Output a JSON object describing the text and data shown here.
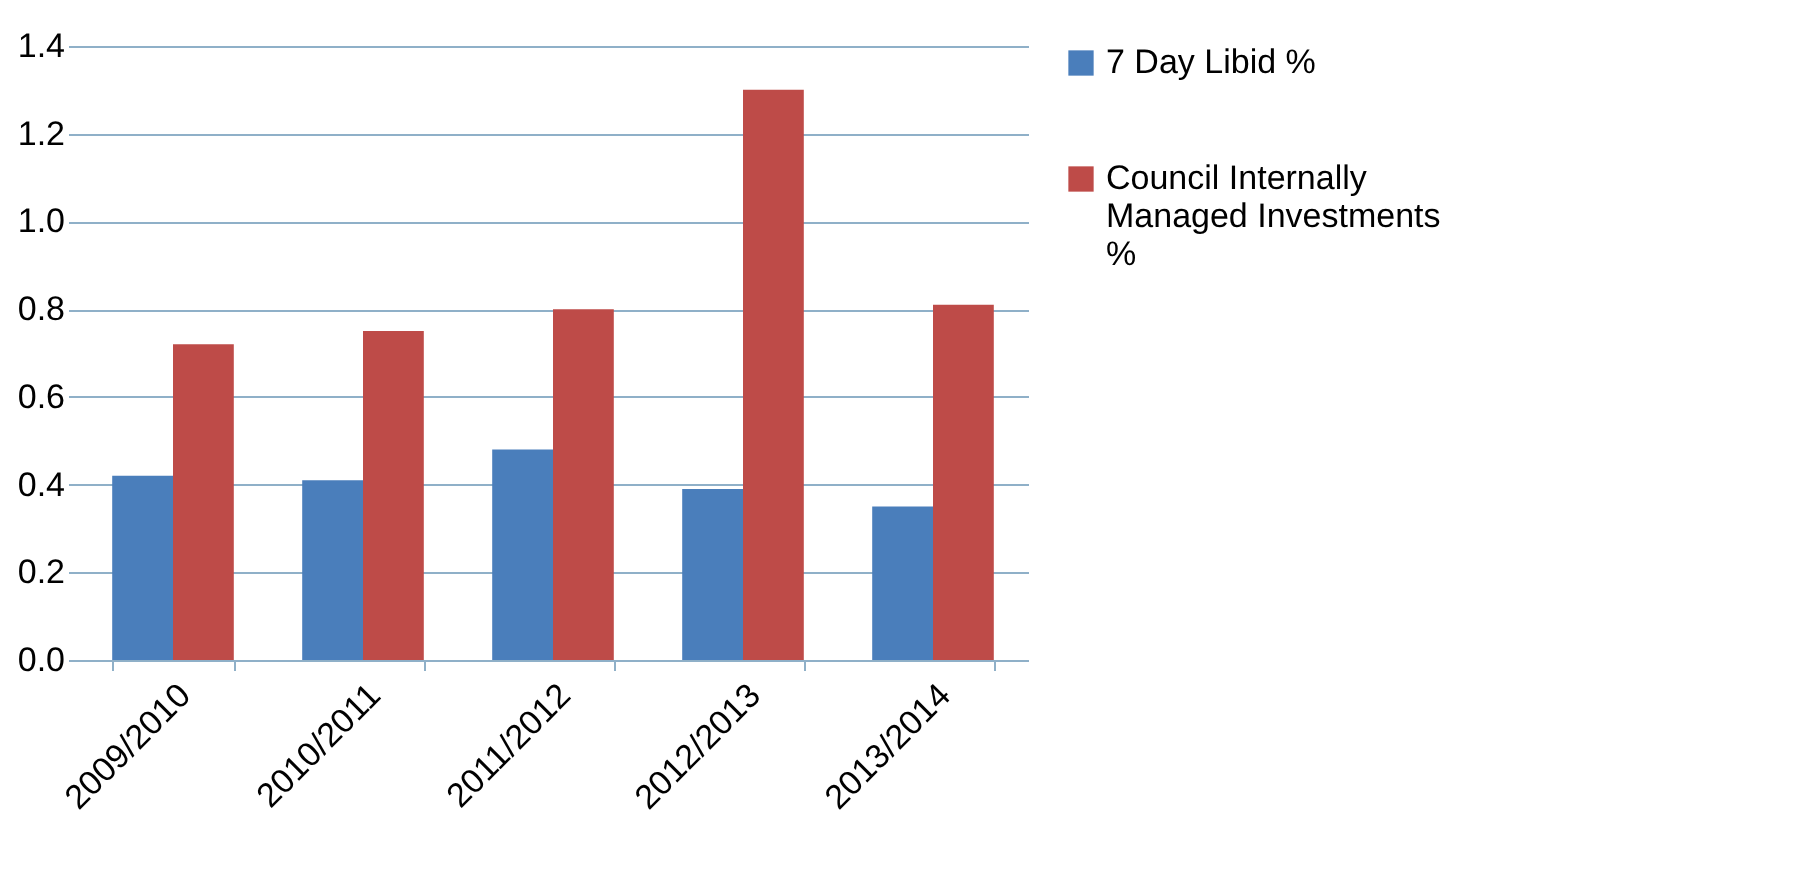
{
  "chart_data": {
    "type": "bar",
    "categories": [
      "2009/2010",
      "2010/2011",
      "2011/2012",
      "2012/2013",
      "2013/2014"
    ],
    "series": [
      {
        "name": "7 Day Libid %",
        "color": "#4a7ebb",
        "values": [
          0.42,
          0.41,
          0.48,
          0.39,
          0.35
        ]
      },
      {
        "name": "Council Internally Managed Investments %",
        "color": "#be4b48",
        "values": [
          0.72,
          0.75,
          0.8,
          1.3,
          0.81
        ]
      }
    ],
    "ylim": [
      0,
      1.4
    ],
    "yticks": [
      {
        "value": 0,
        "label": "0.0"
      },
      {
        "value": 0.2,
        "label": "0.2"
      },
      {
        "value": 0.4,
        "label": "0.4"
      },
      {
        "value": 0.6,
        "label": "0.6"
      },
      {
        "value": 0.8,
        "label": "0.8"
      },
      {
        "value": 1,
        "label": "1.0"
      },
      {
        "value": 1.2,
        "label": "1.2"
      },
      {
        "value": 1.4,
        "label": "1.4"
      }
    ],
    "grid": "y",
    "legend": "right"
  }
}
